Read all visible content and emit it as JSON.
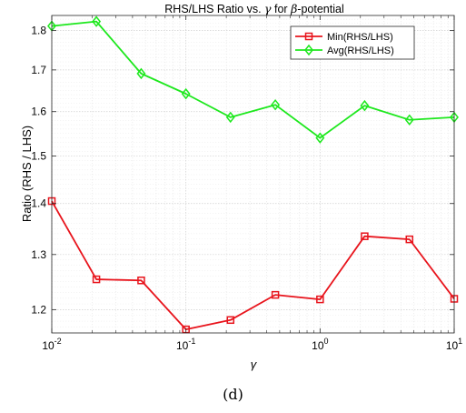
{
  "chart_data": {
    "type": "line",
    "title": "RHS/LHS Ratio vs. γ for β-potential",
    "title_parts": [
      "RHS/LHS Ratio vs. ",
      "γ",
      " for ",
      "β",
      "-potential"
    ],
    "xlabel": "γ",
    "ylabel": "Ratio (RHS / LHS)",
    "xscale": "log",
    "yscale": "log",
    "xlim": [
      0.01,
      10
    ],
    "ylim": [
      1.16,
      1.84
    ],
    "grid": true,
    "minor_grid": true,
    "legend_position": "top-right",
    "x_ticks": [
      {
        "value": 0.01,
        "base": "10",
        "exp": "-2"
      },
      {
        "value": 0.1,
        "base": "10",
        "exp": "-1"
      },
      {
        "value": 1,
        "base": "10",
        "exp": "0"
      },
      {
        "value": 10,
        "base": "10",
        "exp": "1"
      }
    ],
    "y_ticks": [
      {
        "value": 1.2,
        "label": "1.2"
      },
      {
        "value": 1.3,
        "label": "1.3"
      },
      {
        "value": 1.4,
        "label": "1.4"
      },
      {
        "value": 1.5,
        "label": "1.5"
      },
      {
        "value": 1.6,
        "label": "1.6"
      },
      {
        "value": 1.7,
        "label": "1.7"
      },
      {
        "value": 1.8,
        "label": "1.8"
      }
    ],
    "x": [
      0.01,
      0.0215,
      0.0464,
      0.1,
      0.215,
      0.464,
      1,
      2.15,
      4.64,
      10
    ],
    "series": [
      {
        "name": "Min(RHS/LHS)",
        "color": "#e8141c",
        "marker": "square",
        "values": [
          1.405,
          1.254,
          1.252,
          1.166,
          1.182,
          1.226,
          1.218,
          1.335,
          1.329,
          1.219
        ]
      },
      {
        "name": "Avg(RHS/LHS)",
        "color": "#1ee81e",
        "marker": "diamond",
        "values": [
          1.812,
          1.824,
          1.691,
          1.642,
          1.587,
          1.616,
          1.54,
          1.614,
          1.581,
          1.587
        ]
      }
    ]
  },
  "caption": "(d)"
}
